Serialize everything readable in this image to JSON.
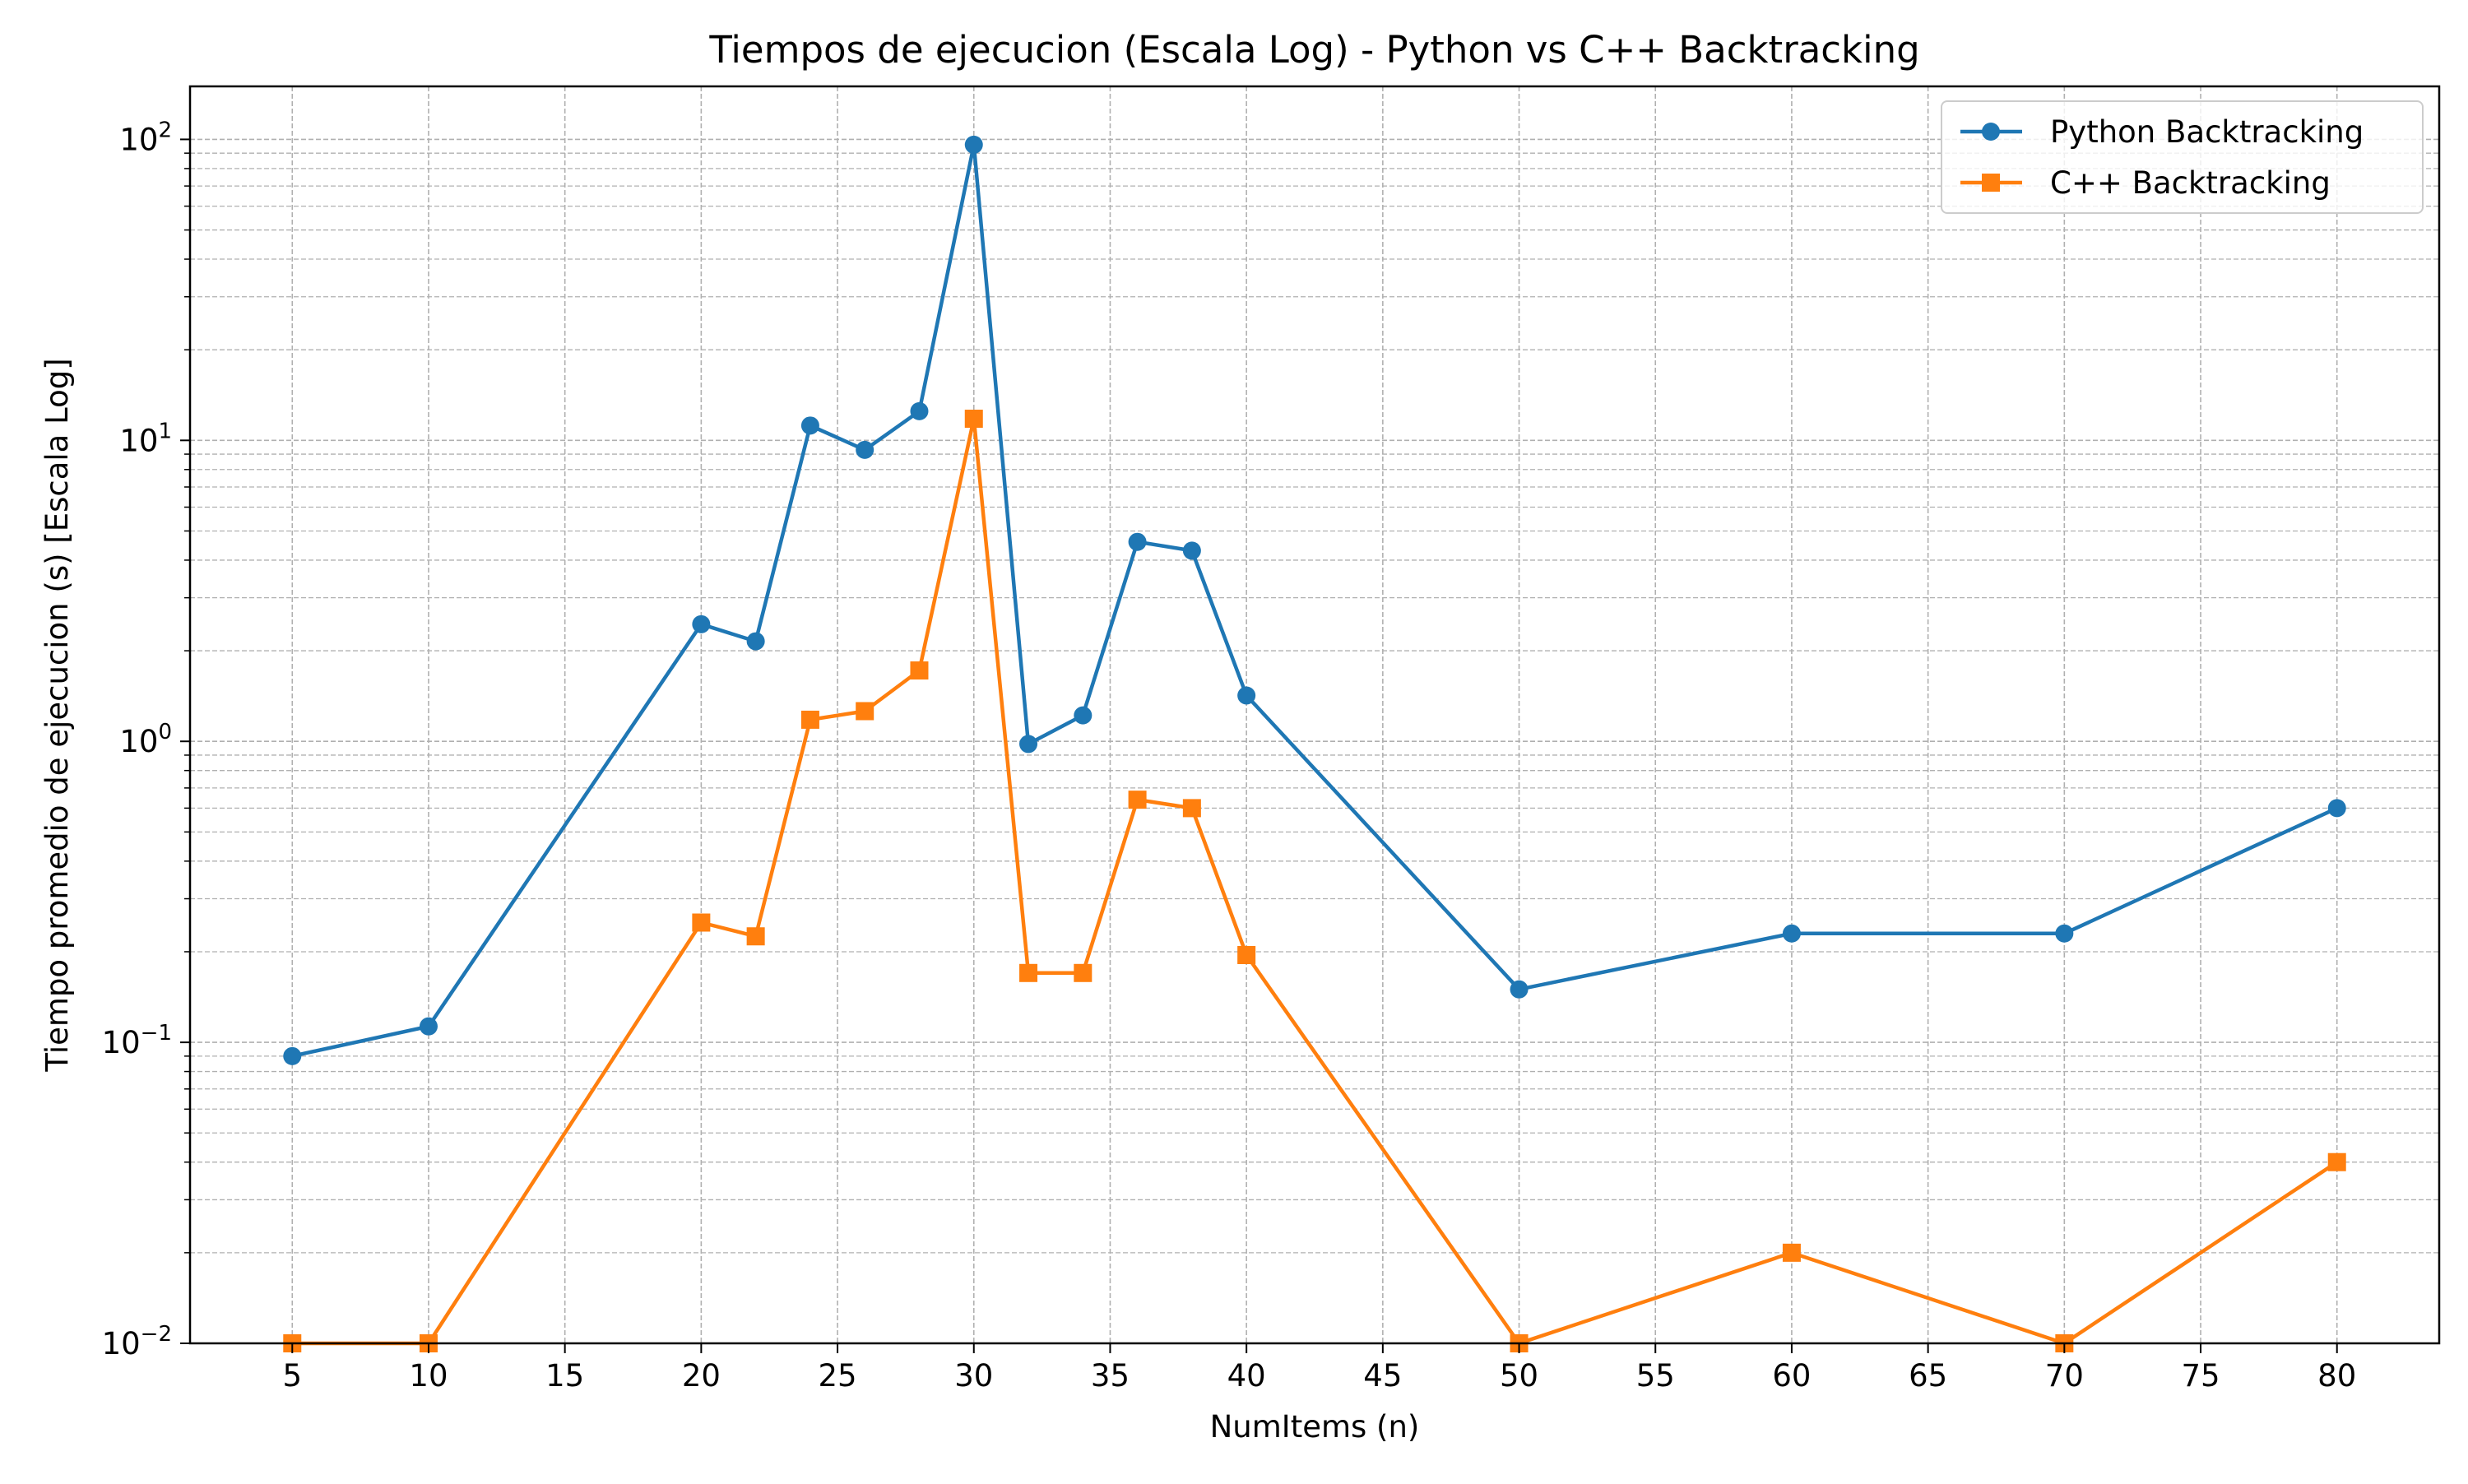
{
  "chart_data": {
    "type": "line",
    "title": "Tiempos de ejecucion (Escala Log) - Python vs C++ Backtracking",
    "xlabel": "NumItems (n)",
    "ylabel": "Tiempo promedio de ejecucion (s) [Escala Log]",
    "x": [
      5,
      10,
      20,
      22,
      24,
      26,
      28,
      30,
      32,
      34,
      36,
      38,
      40,
      50,
      60,
      70,
      80
    ],
    "xlim": [
      1.25,
      83.75
    ],
    "xticks": [
      5,
      10,
      15,
      20,
      25,
      30,
      35,
      40,
      45,
      50,
      55,
      60,
      65,
      70,
      75,
      80
    ],
    "yscale": "log",
    "ylim": [
      0.01,
      150
    ],
    "yticks": [
      {
        "value": 0.01,
        "base": "10",
        "exp": "−2"
      },
      {
        "value": 0.1,
        "base": "10",
        "exp": "−1"
      },
      {
        "value": 1,
        "base": "10",
        "exp": "0"
      },
      {
        "value": 10,
        "base": "10",
        "exp": "1"
      },
      {
        "value": 100,
        "base": "10",
        "exp": "2"
      }
    ],
    "grid": true,
    "legend_position": "top-right",
    "series": [
      {
        "name": "Python Backtracking",
        "color": "#1f77b4",
        "marker": "circle",
        "values": [
          0.09,
          0.113,
          2.45,
          2.15,
          11.2,
          9.3,
          12.5,
          96,
          0.98,
          1.22,
          4.6,
          4.3,
          1.42,
          0.15,
          0.23,
          0.23,
          0.6
        ]
      },
      {
        "name": "C++ Backtracking",
        "color": "#ff7f0e",
        "marker": "square",
        "values": [
          0.01,
          0.01,
          0.25,
          0.225,
          1.18,
          1.26,
          1.72,
          11.8,
          0.17,
          0.17,
          0.64,
          0.6,
          0.195,
          0.01,
          0.02,
          0.01,
          0.04
        ]
      }
    ]
  }
}
